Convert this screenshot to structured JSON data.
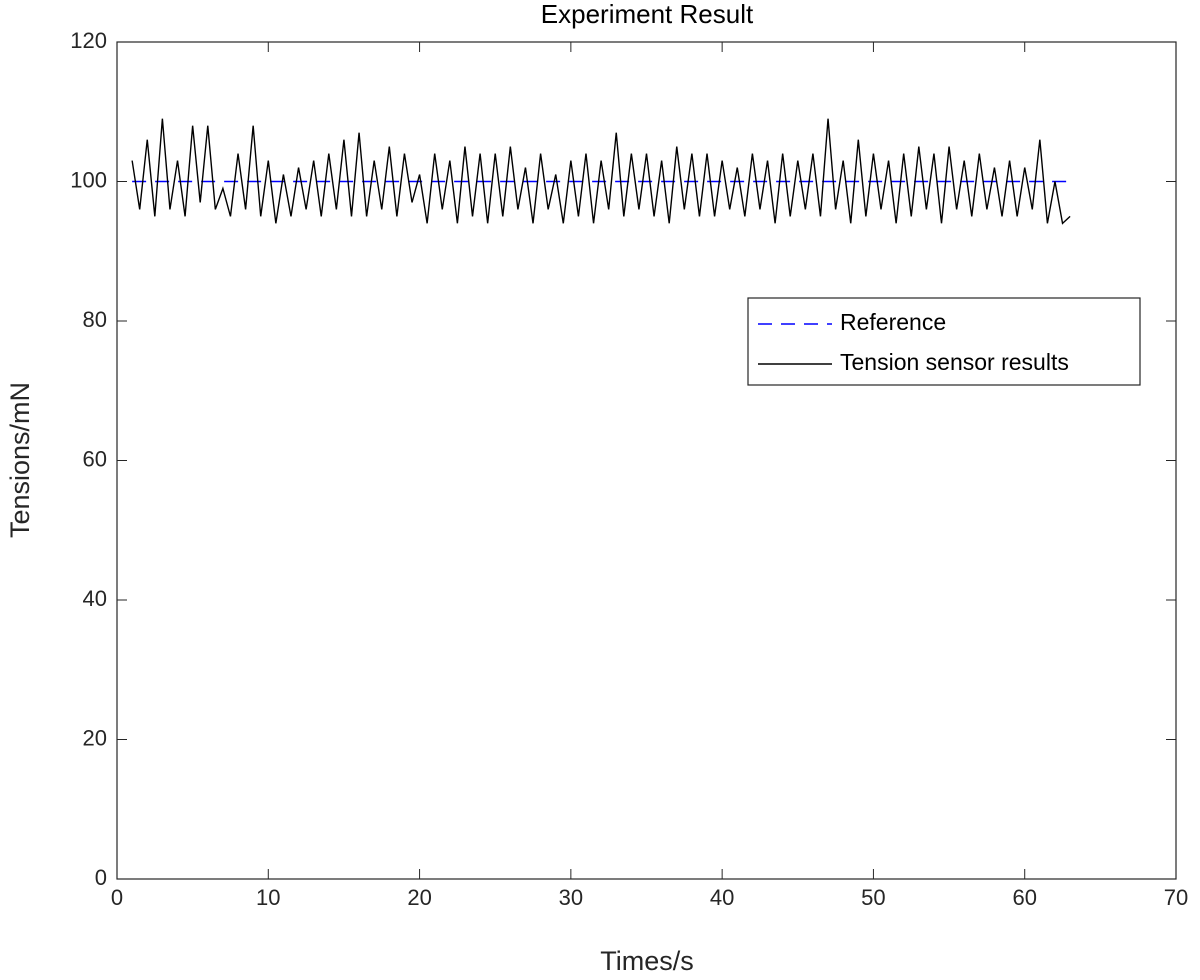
{
  "chart_data": {
    "type": "line",
    "title": "Experiment Result",
    "x_label": "Times/s",
    "y_label": "Tensions/mN",
    "xlim": [
      0,
      70
    ],
    "xticks": [
      0,
      10,
      20,
      30,
      40,
      50,
      60,
      70
    ],
    "ylim": [
      0,
      120
    ],
    "yticks": [
      0,
      20,
      40,
      60,
      80,
      100,
      120
    ],
    "grid": false,
    "legend_position": "east",
    "series": [
      {
        "name": "Reference",
        "color": "#0000ff",
        "line_style": "dashed",
        "x": [
          1,
          63
        ],
        "values": [
          100,
          100
        ]
      },
      {
        "name": "Tension sensor results",
        "color": "#000000",
        "line_style": "solid",
        "x": [
          1,
          1.5,
          2,
          2.5,
          3,
          3.5,
          4,
          4.5,
          5,
          5.5,
          6,
          6.5,
          7,
          7.5,
          8,
          8.5,
          9,
          9.5,
          10,
          10.5,
          11,
          11.5,
          12,
          12.5,
          13,
          13.5,
          14,
          14.5,
          15,
          15.5,
          16,
          16.5,
          17,
          17.5,
          18,
          18.5,
          19,
          19.5,
          20,
          20.5,
          21,
          21.5,
          22,
          22.5,
          23,
          23.5,
          24,
          24.5,
          25,
          25.5,
          26,
          26.5,
          27,
          27.5,
          28,
          28.5,
          29,
          29.5,
          30,
          30.5,
          31,
          31.5,
          32,
          32.5,
          33,
          33.5,
          34,
          34.5,
          35,
          35.5,
          36,
          36.5,
          37,
          37.5,
          38,
          38.5,
          39,
          39.5,
          40,
          40.5,
          41,
          41.5,
          42,
          42.5,
          43,
          43.5,
          44,
          44.5,
          45,
          45.5,
          46,
          46.5,
          47,
          47.5,
          48,
          48.5,
          49,
          49.5,
          50,
          50.5,
          51,
          51.5,
          52,
          52.5,
          53,
          53.5,
          54,
          54.5,
          55,
          55.5,
          56,
          56.5,
          57,
          57.5,
          58,
          58.5,
          59,
          59.5,
          60,
          60.5,
          61,
          61.5,
          62,
          62.5,
          63
        ],
        "values": [
          103,
          96,
          106,
          95,
          109,
          96,
          103,
          95,
          108,
          97,
          108,
          96,
          99,
          95,
          104,
          96,
          108,
          95,
          103,
          94,
          101,
          95,
          102,
          96,
          103,
          95,
          104,
          96,
          106,
          95,
          107,
          95,
          103,
          96,
          105,
          95,
          104,
          97,
          101,
          94,
          104,
          96,
          103,
          94,
          105,
          95,
          104,
          94,
          104,
          95,
          105,
          96,
          102,
          94,
          104,
          96,
          101,
          94,
          103,
          95,
          104,
          94,
          103,
          96,
          107,
          95,
          104,
          96,
          104,
          95,
          103,
          94,
          105,
          96,
          104,
          95,
          104,
          95,
          103,
          96,
          102,
          95,
          104,
          96,
          103,
          94,
          104,
          95,
          103,
          96,
          104,
          95,
          109,
          96,
          103,
          94,
          106,
          95,
          104,
          96,
          103,
          94,
          104,
          95,
          105,
          96,
          104,
          94,
          105,
          96,
          103,
          95,
          104,
          96,
          102,
          95,
          103,
          95,
          102,
          96,
          106,
          94,
          100,
          94,
          95
        ]
      }
    ]
  }
}
